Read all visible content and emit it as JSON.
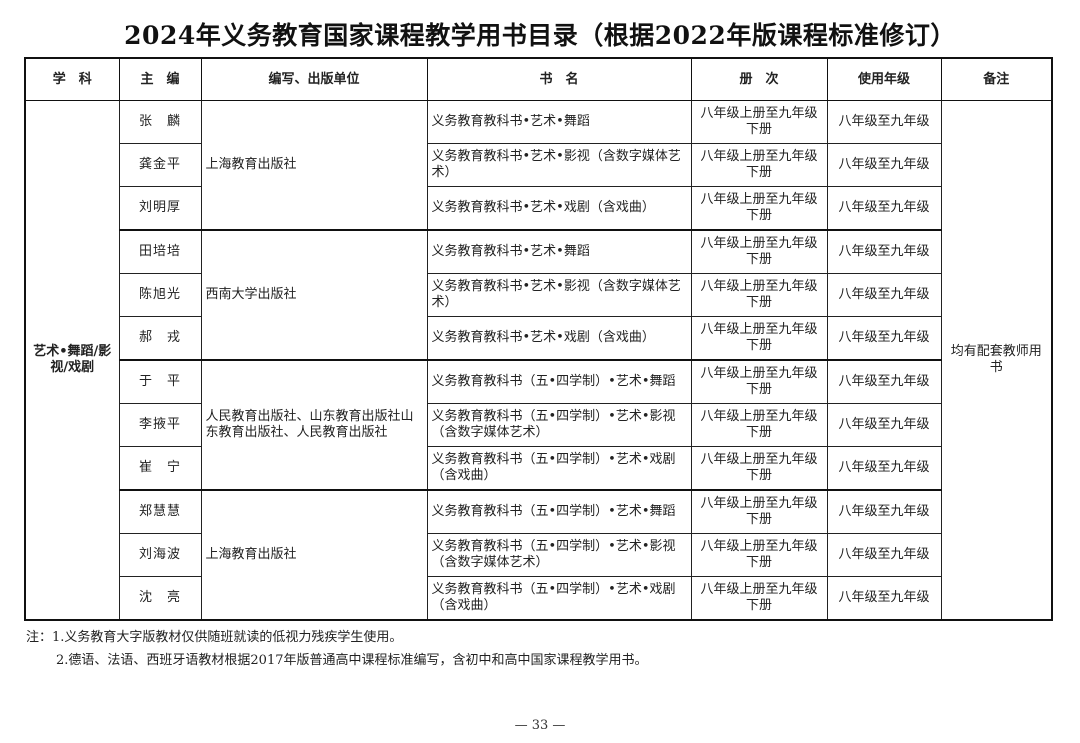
{
  "title": "2024年义务教育国家课程教学用书目录（根据2022年版课程标准修订）",
  "table": {
    "headers": [
      "学　科",
      "主　编",
      "编写、出版单位",
      "书　名",
      "册　次",
      "使用年级",
      "备注"
    ],
    "subject": "艺术•舞蹈/影视/戏剧",
    "remark": "均有配套教师用书",
    "groups": [
      {
        "publisher": "上海教育出版社",
        "rows": [
          {
            "editor": "张　麟",
            "book": "义务教育教科书•艺术•舞蹈",
            "volume": "八年级上册至九年级下册",
            "grade": "八年级至九年级"
          },
          {
            "editor": "龚金平",
            "book": "义务教育教科书•艺术•影视（含数字媒体艺术）",
            "volume": "八年级上册至九年级下册",
            "grade": "八年级至九年级"
          },
          {
            "editor": "刘明厚",
            "book": "义务教育教科书•艺术•戏剧（含戏曲）",
            "volume": "八年级上册至九年级下册",
            "grade": "八年级至九年级"
          }
        ]
      },
      {
        "publisher": "西南大学出版社",
        "rows": [
          {
            "editor": "田培培",
            "book": "义务教育教科书•艺术•舞蹈",
            "volume": "八年级上册至九年级下册",
            "grade": "八年级至九年级"
          },
          {
            "editor": "陈旭光",
            "book": "义务教育教科书•艺术•影视（含数字媒体艺术）",
            "volume": "八年级上册至九年级下册",
            "grade": "八年级至九年级"
          },
          {
            "editor": "郝　戎",
            "book": "义务教育教科书•艺术•戏剧（含戏曲）",
            "volume": "八年级上册至九年级下册",
            "grade": "八年级至九年级"
          }
        ]
      },
      {
        "publisher": "人民教育出版社、山东教育出版社山东教育出版社、人民教育出版社",
        "rows": [
          {
            "editor": "于　平",
            "book": "义务教育教科书（五•四学制）•艺术•舞蹈",
            "volume": "八年级上册至九年级下册",
            "grade": "八年级至九年级"
          },
          {
            "editor": "李掖平",
            "book": "义务教育教科书（五•四学制）•艺术•影视（含数字媒体艺术）",
            "volume": "八年级上册至九年级下册",
            "grade": "八年级至九年级"
          },
          {
            "editor": "崔　宁",
            "book": "义务教育教科书（五•四学制）•艺术•戏剧（含戏曲）",
            "volume": "八年级上册至九年级下册",
            "grade": "八年级至九年级"
          }
        ]
      },
      {
        "publisher": "上海教育出版社",
        "rows": [
          {
            "editor": "郑慧慧",
            "book": "义务教育教科书（五•四学制）•艺术•舞蹈",
            "volume": "八年级上册至九年级下册",
            "grade": "八年级至九年级"
          },
          {
            "editor": "刘海波",
            "book": "义务教育教科书（五•四学制）•艺术•影视（含数字媒体艺术）",
            "volume": "八年级上册至九年级下册",
            "grade": "八年级至九年级"
          },
          {
            "editor": "沈　亮",
            "book": "义务教育教科书（五•四学制）•艺术•戏剧（含戏曲）",
            "volume": "八年级上册至九年级下册",
            "grade": "八年级至九年级"
          }
        ]
      }
    ]
  },
  "notes": {
    "note1": "注：1.义务教育大字版教材仅供随班就读的低视力残疾学生使用。",
    "note2": "2.德语、法语、西班牙语教材根据2017年版普通高中课程标准编写，含初中和高中国家课程教学用书。"
  },
  "page_number": "— 33 —"
}
